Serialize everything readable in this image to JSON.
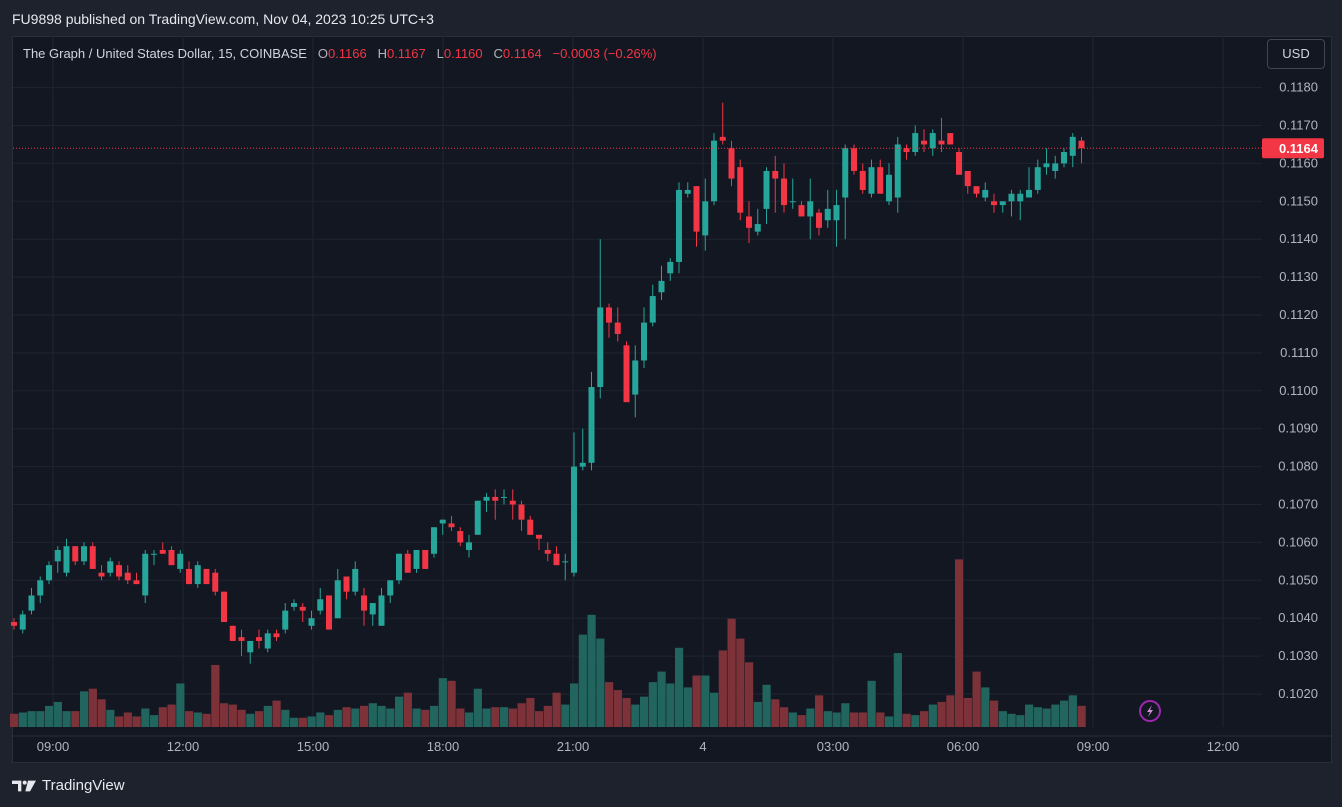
{
  "header": {
    "published": "FU9898 published on TradingView.com, Nov 04, 2023 10:25 UTC+3"
  },
  "legend": {
    "symbol": "The Graph / United States Dollar, 15, COINBASE",
    "o_label": "O",
    "o_value": "0.1166",
    "h_label": "H",
    "h_value": "0.1167",
    "l_label": "L",
    "l_value": "0.1160",
    "c_label": "C",
    "c_value": "0.1164",
    "change": "−0.0003 (−0.26%)"
  },
  "currency_button": "USD",
  "footer": {
    "brand": "TradingView"
  },
  "colors": {
    "up": "#26a69a",
    "down": "#f23645",
    "vol_up": "#22645e",
    "vol_down": "#7c3238",
    "background": "#131722",
    "grid": "#1f2430"
  },
  "chart_data": {
    "type": "candlestick",
    "symbol": "The Graph / United States Dollar",
    "interval": "15",
    "exchange": "COINBASE",
    "currency": "USD",
    "last_price": "0.1164",
    "ylim": [
      0.10125,
      0.11935
    ],
    "y_ticks": [
      "0.1020",
      "0.1030",
      "0.1040",
      "0.1050",
      "0.1060",
      "0.1070",
      "0.1080",
      "0.1090",
      "0.1100",
      "0.1110",
      "0.1120",
      "0.1130",
      "0.1140",
      "0.1150",
      "0.1160",
      "0.1170",
      "0.1180"
    ],
    "x_ticks": [
      "09:00",
      "12:00",
      "15:00",
      "18:00",
      "21:00",
      "4",
      "03:00",
      "06:00",
      "09:00",
      "12:00"
    ],
    "candles": [
      [
        0.1039,
        0.104,
        0.1037,
        0.1038,
        1.0
      ],
      [
        0.1037,
        0.1042,
        0.1036,
        0.1041,
        1.1
      ],
      [
        0.1042,
        0.1048,
        0.1041,
        0.1046,
        1.2
      ],
      [
        0.1046,
        0.1051,
        0.1044,
        0.105,
        1.2
      ],
      [
        0.105,
        0.1055,
        0.1049,
        0.1054,
        1.6
      ],
      [
        0.1055,
        0.1059,
        0.1052,
        0.1058,
        1.9
      ],
      [
        0.1052,
        0.1061,
        0.1051,
        0.1059,
        1.2
      ],
      [
        0.1059,
        0.1059,
        0.1054,
        0.1055,
        1.2
      ],
      [
        0.1055,
        0.106,
        0.1054,
        0.1059,
        2.7
      ],
      [
        0.1059,
        0.106,
        0.1053,
        0.1053,
        2.9
      ],
      [
        0.1052,
        0.1054,
        0.105,
        0.1051,
        2.1
      ],
      [
        0.1052,
        0.1056,
        0.1051,
        0.1055,
        1.3
      ],
      [
        0.1054,
        0.1055,
        0.105,
        0.1051,
        0.8
      ],
      [
        0.1052,
        0.1054,
        0.1049,
        0.105,
        1.1
      ],
      [
        0.105,
        0.1052,
        0.1049,
        0.1049,
        0.8
      ],
      [
        0.1046,
        0.1058,
        0.1044,
        0.1057,
        1.4
      ],
      [
        0.1057,
        0.1058,
        0.1054,
        0.1057,
        0.9
      ],
      [
        0.1058,
        0.106,
        0.1057,
        0.1057,
        1.5
      ],
      [
        0.1058,
        0.1059,
        0.1054,
        0.1054,
        1.7
      ],
      [
        0.1053,
        0.1058,
        0.1052,
        0.1057,
        3.3
      ],
      [
        0.1053,
        0.1055,
        0.1049,
        0.1049,
        1.2
      ],
      [
        0.1049,
        0.1055,
        0.1048,
        0.1054,
        1.1
      ],
      [
        0.1053,
        0.1053,
        0.1049,
        0.1049,
        1.0
      ],
      [
        0.1052,
        0.1053,
        0.1046,
        0.1047,
        4.7
      ],
      [
        0.1047,
        0.1047,
        0.1039,
        0.1039,
        1.8
      ],
      [
        0.1038,
        0.1038,
        0.1034,
        0.1034,
        1.7
      ],
      [
        0.1035,
        0.1037,
        0.103,
        0.1034,
        1.3
      ],
      [
        0.1031,
        0.1034,
        0.1028,
        0.1034,
        1.0
      ],
      [
        0.1035,
        0.1037,
        0.1032,
        0.1034,
        1.2
      ],
      [
        0.1032,
        0.1037,
        0.1031,
        0.1036,
        1.6
      ],
      [
        0.1036,
        0.1037,
        0.1034,
        0.1035,
        2.0
      ],
      [
        0.1037,
        0.1044,
        0.1036,
        0.1042,
        1.3
      ],
      [
        0.1043,
        0.1045,
        0.1042,
        0.1044,
        0.7
      ],
      [
        0.1043,
        0.1044,
        0.1039,
        0.1042,
        0.7
      ],
      [
        0.1038,
        0.1042,
        0.1037,
        0.104,
        0.8
      ],
      [
        0.1042,
        0.1048,
        0.1041,
        0.1045,
        1.1
      ],
      [
        0.1046,
        0.1046,
        0.1037,
        0.1037,
        0.9
      ],
      [
        0.104,
        0.1053,
        0.104,
        0.105,
        1.3
      ],
      [
        0.1051,
        0.1051,
        0.1045,
        0.1047,
        1.5
      ],
      [
        0.1047,
        0.1055,
        0.1046,
        0.1053,
        1.4
      ],
      [
        0.1046,
        0.1048,
        0.1038,
        0.1042,
        1.6
      ],
      [
        0.1041,
        0.1044,
        0.1038,
        0.1044,
        1.8
      ],
      [
        0.1038,
        0.1048,
        0.1038,
        0.1046,
        1.6
      ],
      [
        0.1046,
        0.105,
        0.1044,
        0.105,
        1.4
      ],
      [
        0.105,
        0.1057,
        0.1049,
        0.1057,
        2.3
      ],
      [
        0.1057,
        0.1058,
        0.1052,
        0.1052,
        2.6
      ],
      [
        0.1053,
        0.1058,
        0.1052,
        0.1058,
        1.4
      ],
      [
        0.1058,
        0.1058,
        0.1053,
        0.1053,
        1.3
      ],
      [
        0.1057,
        0.1064,
        0.1056,
        0.1064,
        1.6
      ],
      [
        0.1065,
        0.1066,
        0.1062,
        0.1066,
        3.7
      ],
      [
        0.1065,
        0.1067,
        0.1063,
        0.1064,
        3.5
      ],
      [
        0.1063,
        0.1064,
        0.1059,
        0.106,
        1.4
      ],
      [
        0.1058,
        0.1062,
        0.1056,
        0.106,
        1.1
      ],
      [
        0.1062,
        0.107,
        0.1062,
        0.1071,
        2.9
      ],
      [
        0.1071,
        0.1073,
        0.1068,
        0.1072,
        1.4
      ],
      [
        0.1072,
        0.1074,
        0.1066,
        0.1071,
        1.5
      ],
      [
        0.1072,
        0.1074,
        0.107,
        0.1072,
        1.5
      ],
      [
        0.1071,
        0.1074,
        0.1066,
        0.107,
        1.4
      ],
      [
        0.107,
        0.1071,
        0.1063,
        0.1066,
        1.8
      ],
      [
        0.1066,
        0.1067,
        0.1062,
        0.1062,
        2.2
      ],
      [
        0.1062,
        0.1062,
        0.1058,
        0.1061,
        1.2
      ],
      [
        0.1058,
        0.106,
        0.1055,
        0.1057,
        1.6
      ],
      [
        0.1057,
        0.1059,
        0.1054,
        0.1054,
        2.6
      ],
      [
        0.1055,
        0.1057,
        0.105,
        0.1055,
        1.7
      ],
      [
        0.1052,
        0.1089,
        0.1051,
        0.108,
        3.3
      ],
      [
        0.108,
        0.109,
        0.1079,
        0.1081,
        7.0
      ],
      [
        0.1081,
        0.1105,
        0.1079,
        0.1101,
        8.5
      ],
      [
        0.1101,
        0.114,
        0.1098,
        0.1122,
        6.7
      ],
      [
        0.1122,
        0.1123,
        0.1114,
        0.1118,
        3.4
      ],
      [
        0.1118,
        0.1122,
        0.1113,
        0.1115,
        2.8
      ],
      [
        0.1112,
        0.1113,
        0.1097,
        0.1097,
        2.2
      ],
      [
        0.1099,
        0.1112,
        0.1093,
        0.1108,
        1.7
      ],
      [
        0.1108,
        0.1122,
        0.1106,
        0.1118,
        2.3
      ],
      [
        0.1118,
        0.1128,
        0.1117,
        0.1125,
        3.4
      ],
      [
        0.1126,
        0.1133,
        0.1124,
        0.1129,
        4.2
      ],
      [
        0.1131,
        0.1135,
        0.1129,
        0.1134,
        3.3
      ],
      [
        0.1134,
        0.1155,
        0.1131,
        0.1153,
        6.0
      ],
      [
        0.1152,
        0.1155,
        0.1151,
        0.1153,
        3.0
      ],
      [
        0.1154,
        0.1154,
        0.1138,
        0.1142,
        3.9
      ],
      [
        0.1141,
        0.1156,
        0.1137,
        0.115,
        3.9
      ],
      [
        0.115,
        0.1168,
        0.1149,
        0.1166,
        2.6
      ],
      [
        0.1167,
        0.1176,
        0.1165,
        0.1166,
        5.8
      ],
      [
        0.1164,
        0.1166,
        0.1154,
        0.1156,
        8.2
      ],
      [
        0.1159,
        0.1161,
        0.1145,
        0.1147,
        6.7
      ],
      [
        0.1146,
        0.115,
        0.1139,
        0.1143,
        4.9
      ],
      [
        0.1142,
        0.1148,
        0.1141,
        0.1144,
        1.9
      ],
      [
        0.1148,
        0.1159,
        0.1144,
        0.1158,
        3.2
      ],
      [
        0.1158,
        0.1162,
        0.1147,
        0.1156,
        2.1
      ],
      [
        0.1156,
        0.116,
        0.1147,
        0.1149,
        1.5
      ],
      [
        0.115,
        0.1156,
        0.1148,
        0.115,
        1.1
      ],
      [
        0.1149,
        0.115,
        0.1146,
        0.1146,
        0.9
      ],
      [
        0.1146,
        0.1156,
        0.114,
        0.115,
        1.4
      ],
      [
        0.1147,
        0.1148,
        0.1141,
        0.1143,
        2.4
      ],
      [
        0.1145,
        0.1153,
        0.1143,
        0.1148,
        1.2
      ],
      [
        0.1145,
        0.1153,
        0.1138,
        0.1149,
        1.1
      ],
      [
        0.1151,
        0.1165,
        0.114,
        0.1164,
        1.8
      ],
      [
        0.1164,
        0.1165,
        0.1157,
        0.1158,
        1.1
      ],
      [
        0.1158,
        0.116,
        0.1152,
        0.1153,
        1.1
      ],
      [
        0.1152,
        0.1161,
        0.1151,
        0.1159,
        3.5
      ],
      [
        0.1159,
        0.1161,
        0.1152,
        0.1152,
        1.1
      ],
      [
        0.115,
        0.116,
        0.1149,
        0.1157,
        0.8
      ],
      [
        0.1151,
        0.1167,
        0.1147,
        0.1165,
        5.6
      ],
      [
        0.1164,
        0.1165,
        0.1161,
        0.1163,
        1.0
      ],
      [
        0.1163,
        0.117,
        0.1162,
        0.1168,
        0.9
      ],
      [
        0.1166,
        0.1169,
        0.1163,
        0.1165,
        1.2
      ],
      [
        0.1164,
        0.1169,
        0.1162,
        0.1168,
        1.7
      ],
      [
        0.1166,
        0.1172,
        0.1163,
        0.1165,
        1.9
      ],
      [
        0.1168,
        0.1168,
        0.1165,
        0.1165,
        2.4
      ],
      [
        0.1163,
        0.1164,
        0.1157,
        0.1157,
        12.7
      ],
      [
        0.1158,
        0.1158,
        0.1152,
        0.1154,
        2.2
      ],
      [
        0.1154,
        0.1153,
        0.1151,
        0.1152,
        4.2
      ],
      [
        0.1151,
        0.1155,
        0.115,
        0.1153,
        3.0
      ],
      [
        0.115,
        0.1152,
        0.1147,
        0.1149,
        2.0
      ],
      [
        0.1149,
        0.115,
        0.1147,
        0.115,
        1.2
      ],
      [
        0.115,
        0.1153,
        0.1146,
        0.1152,
        1.0
      ],
      [
        0.115,
        0.1153,
        0.1145,
        0.1152,
        0.9
      ],
      [
        0.1151,
        0.1159,
        0.1151,
        0.1153,
        1.7
      ],
      [
        0.1153,
        0.1161,
        0.1152,
        0.1159,
        1.5
      ],
      [
        0.1159,
        0.1164,
        0.1157,
        0.116,
        1.4
      ],
      [
        0.1158,
        0.1162,
        0.1156,
        0.116,
        1.7
      ],
      [
        0.116,
        0.1164,
        0.1159,
        0.1163,
        2.0
      ],
      [
        0.1162,
        0.1168,
        0.1159,
        0.1167,
        2.4
      ],
      [
        0.1166,
        0.1167,
        0.116,
        0.1164,
        1.6
      ]
    ]
  }
}
